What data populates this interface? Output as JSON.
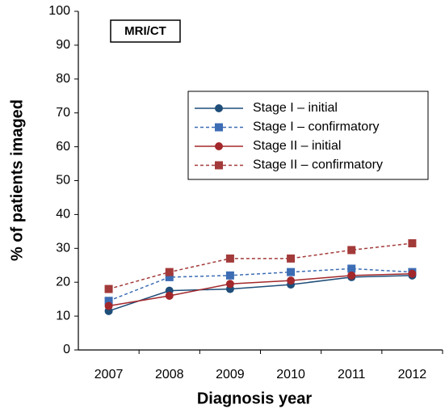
{
  "chart_data": {
    "type": "line",
    "annotation": "MRI/CT",
    "x_label": "Diagnosis year",
    "y_label": "% of patients imaged",
    "categories": [
      "2007",
      "2008",
      "2009",
      "2010",
      "2011",
      "2012"
    ],
    "series": [
      {
        "name": "Stage I – initial",
        "color": "#1f4e79",
        "dashed": false,
        "marker": "circle",
        "values": [
          11.5,
          17.5,
          18,
          19.3,
          21.5,
          22
        ]
      },
      {
        "name": "Stage I – confirmatory",
        "color": "#3c6db4",
        "dashed": true,
        "marker": "square",
        "values": [
          14.5,
          21.5,
          22,
          23,
          24,
          23
        ]
      },
      {
        "name": "Stage II – initial",
        "color": "#a3282b",
        "dashed": false,
        "marker": "circle",
        "values": [
          13,
          16,
          19.5,
          20.5,
          22,
          22.5
        ]
      },
      {
        "name": "Stage II – confirmatory",
        "color": "#a33a3a",
        "dashed": true,
        "marker": "square",
        "values": [
          18,
          23,
          27,
          27,
          29.5,
          31.5
        ]
      }
    ],
    "ylim": [
      0,
      100
    ],
    "yticks": [
      0,
      10,
      20,
      30,
      40,
      50,
      60,
      70,
      80,
      90,
      100
    ],
    "grid": false,
    "legend_position": "center-right"
  }
}
